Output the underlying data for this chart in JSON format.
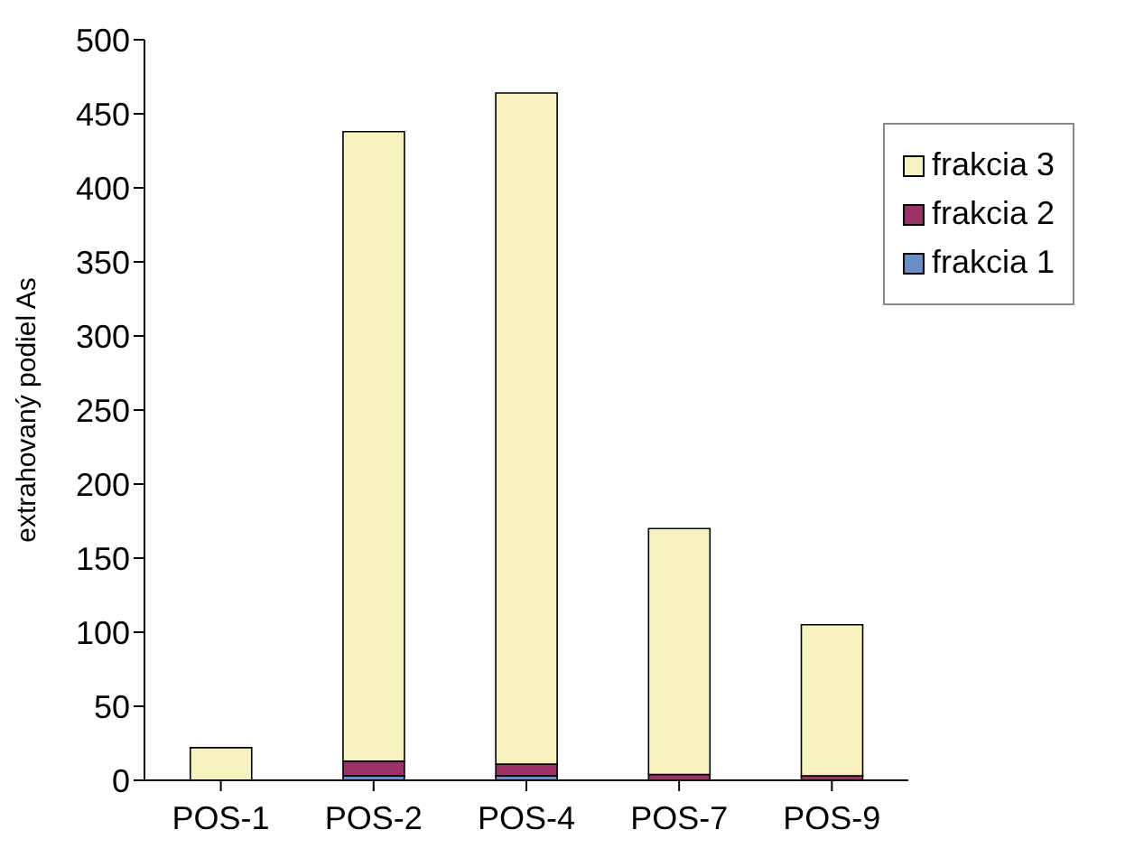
{
  "chart_data": {
    "type": "bar",
    "stacked": true,
    "ylabel": "extrahovaný podiel As",
    "categories": [
      "POS-1",
      "POS-2",
      "POS-4",
      "POS-7",
      "POS-9"
    ],
    "series": [
      {
        "name": "frakcia 1",
        "color": "#6b8cc7",
        "values": [
          null,
          3,
          3,
          null,
          null
        ]
      },
      {
        "name": "frakcia 2",
        "color": "#993366",
        "values": [
          null,
          10,
          8,
          4,
          3
        ]
      },
      {
        "name": "frakcia 3",
        "color": "#f5f2c0",
        "values": [
          22,
          425,
          453,
          166,
          102
        ]
      }
    ],
    "ylim": [
      0,
      500
    ],
    "yticks": [
      0,
      50,
      100,
      150,
      200,
      250,
      300,
      350,
      400,
      450,
      500
    ],
    "grid": false,
    "legend": "top right"
  }
}
